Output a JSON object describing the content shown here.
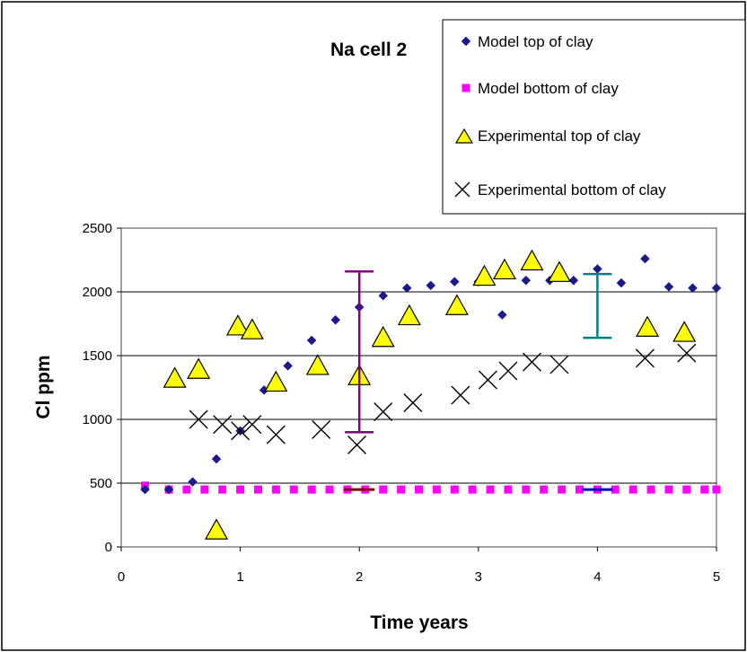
{
  "chart_data": {
    "type": "scatter",
    "title": "Na cell 2",
    "xlabel": "Time years",
    "ylabel": "Cl ppm",
    "xlim": [
      0,
      5
    ],
    "ylim": [
      0,
      2500
    ],
    "xticks": [
      "0",
      "1",
      "2",
      "3",
      "4",
      "5"
    ],
    "yticks": [
      "0",
      "500",
      "1000",
      "1500",
      "2000",
      "2500"
    ],
    "grid": "horizontal",
    "legend_position": "top-right",
    "series": [
      {
        "name": "Model top of clay",
        "marker": "diamond",
        "color": "#1a1a8c",
        "points": [
          [
            0.2,
            450
          ],
          [
            0.4,
            450
          ],
          [
            0.6,
            510
          ],
          [
            0.8,
            690
          ],
          [
            1.0,
            910
          ],
          [
            1.2,
            1230
          ],
          [
            1.4,
            1420
          ],
          [
            1.6,
            1620
          ],
          [
            1.8,
            1780
          ],
          [
            2.0,
            1880
          ],
          [
            2.2,
            1970
          ],
          [
            2.4,
            2030
          ],
          [
            2.6,
            2050
          ],
          [
            2.8,
            2080
          ],
          [
            3.0,
            2080
          ],
          [
            3.2,
            1820
          ],
          [
            3.4,
            2090
          ],
          [
            3.6,
            2090
          ],
          [
            3.8,
            2090
          ],
          [
            4.0,
            2180
          ],
          [
            4.2,
            2070
          ],
          [
            4.4,
            2260
          ],
          [
            4.6,
            2040
          ],
          [
            4.8,
            2030
          ],
          [
            5.0,
            2030
          ]
        ]
      },
      {
        "name": "Model bottom of clay",
        "marker": "square",
        "color": "#ff00ff",
        "points": [
          [
            0.2,
            480
          ],
          [
            0.4,
            450
          ],
          [
            0.55,
            450
          ],
          [
            0.7,
            450
          ],
          [
            0.85,
            450
          ],
          [
            1.0,
            450
          ],
          [
            1.15,
            450
          ],
          [
            1.3,
            450
          ],
          [
            1.45,
            450
          ],
          [
            1.6,
            450
          ],
          [
            1.75,
            450
          ],
          [
            1.9,
            450
          ],
          [
            2.05,
            450
          ],
          [
            2.2,
            450
          ],
          [
            2.35,
            450
          ],
          [
            2.5,
            450
          ],
          [
            2.65,
            450
          ],
          [
            2.8,
            450
          ],
          [
            2.95,
            450
          ],
          [
            3.1,
            450
          ],
          [
            3.25,
            450
          ],
          [
            3.4,
            450
          ],
          [
            3.55,
            450
          ],
          [
            3.7,
            450
          ],
          [
            3.85,
            450
          ],
          [
            4.0,
            450
          ],
          [
            4.15,
            450
          ],
          [
            4.3,
            450
          ],
          [
            4.45,
            450
          ],
          [
            4.6,
            450
          ],
          [
            4.75,
            450
          ],
          [
            4.9,
            450
          ],
          [
            5.0,
            450
          ]
        ]
      },
      {
        "name": "Experimental top of clay",
        "marker": "triangle",
        "color": "#ffff00",
        "points": [
          [
            0.45,
            1320
          ],
          [
            0.65,
            1390
          ],
          [
            0.8,
            130
          ],
          [
            0.98,
            1730
          ],
          [
            1.1,
            1700
          ],
          [
            1.3,
            1290
          ],
          [
            1.65,
            1420
          ],
          [
            2.0,
            1340
          ],
          [
            2.2,
            1640
          ],
          [
            2.42,
            1810
          ],
          [
            2.82,
            1890
          ],
          [
            3.05,
            2120
          ],
          [
            3.22,
            2170
          ],
          [
            3.45,
            2240
          ],
          [
            3.68,
            2150
          ],
          [
            4.42,
            1720
          ],
          [
            4.73,
            1680
          ]
        ]
      },
      {
        "name": "Experimental bottom of clay",
        "marker": "x",
        "color": "#000000",
        "points": [
          [
            0.65,
            1000
          ],
          [
            0.85,
            960
          ],
          [
            1.0,
            910
          ],
          [
            1.1,
            960
          ],
          [
            1.3,
            880
          ],
          [
            1.68,
            920
          ],
          [
            1.98,
            800
          ],
          [
            2.2,
            1060
          ],
          [
            2.45,
            1130
          ],
          [
            2.85,
            1190
          ],
          [
            3.08,
            1310
          ],
          [
            3.25,
            1380
          ],
          [
            3.45,
            1450
          ],
          [
            3.68,
            1430
          ],
          [
            4.4,
            1480
          ],
          [
            4.75,
            1520
          ]
        ]
      }
    ],
    "error_bars": [
      {
        "x": 2.0,
        "y_low": 900,
        "y_high": 2160,
        "color": "#800080"
      },
      {
        "x": 4.0,
        "y_low": 1640,
        "y_high": 2140,
        "color": "#008080"
      }
    ],
    "short_markers": [
      {
        "x": 2.0,
        "y": 450,
        "color": "#800000"
      },
      {
        "x": 4.0,
        "y": 450,
        "color": "#0000cc"
      }
    ]
  }
}
